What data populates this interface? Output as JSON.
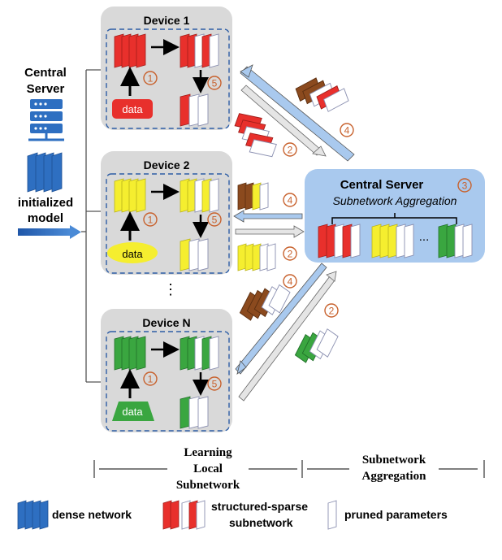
{
  "left": {
    "title_line1": "Central",
    "title_line2": "Server",
    "model_line1": "initialized",
    "model_line2": "model"
  },
  "devices": [
    {
      "title": "Device 1",
      "data_label": "data",
      "color": "#e8302c",
      "data_shape": "rect"
    },
    {
      "title": "Device 2",
      "data_label": "data",
      "color": "#f5ee2f",
      "data_shape": "ellipse"
    },
    {
      "title": "Device N",
      "data_label": "data",
      "color": "#3aa640",
      "data_shape": "trapezoid"
    }
  ],
  "ellipsis": "⋮",
  "steps": {
    "s1": "1",
    "s2": "2",
    "s3": "3",
    "s4": "4",
    "s5": "5"
  },
  "server": {
    "title": "Central Server",
    "subtitle": "Subnetwork Aggregation",
    "dots": "..."
  },
  "bottom": {
    "learn_line1": "Learning",
    "learn_line2": "Local",
    "learn_line3": "Subnetwork",
    "agg_line1": "Subnetwork",
    "agg_line2": "Aggregation"
  },
  "legend": {
    "dense": "dense network",
    "sparse_line1": "structured-sparse",
    "sparse_line2": "subnetwork",
    "pruned": "pruned parameters"
  },
  "colors": {
    "dense": "#2e6fc1",
    "red": "#e8302c",
    "yellow": "#f5ee2f",
    "green": "#3aa640",
    "brown": "#8b4a1e",
    "step": "#c8622e",
    "device_bg": "#d9d9d9",
    "server_bg": "#a9c9ee"
  }
}
